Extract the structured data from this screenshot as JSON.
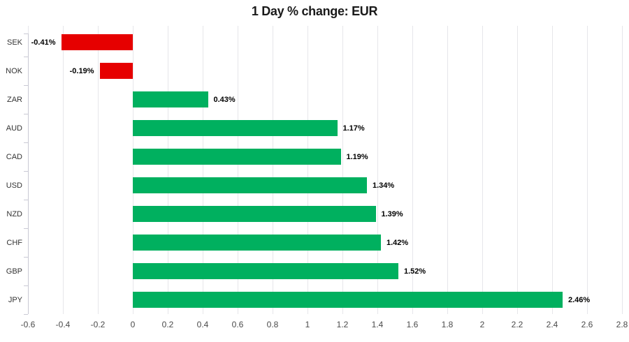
{
  "chart_data": {
    "type": "bar",
    "orientation": "horizontal",
    "title": "1 Day % change: EUR",
    "categories": [
      "SEK",
      "NOK",
      "ZAR",
      "AUD",
      "CAD",
      "USD",
      "NZD",
      "CHF",
      "GBP",
      "JPY"
    ],
    "values": [
      -0.41,
      -0.19,
      0.43,
      1.17,
      1.19,
      1.34,
      1.39,
      1.42,
      1.52,
      2.46
    ],
    "value_labels": [
      "-0.41%",
      "-0.19%",
      "0.43%",
      "1.17%",
      "1.19%",
      "1.34%",
      "1.39%",
      "1.42%",
      "1.52%",
      "2.46%"
    ],
    "xlabel": "",
    "ylabel": "",
    "xlim": [
      -0.6,
      2.8
    ],
    "xticks": [
      -0.6,
      -0.4,
      -0.2,
      0,
      0.2,
      0.4,
      0.6,
      0.8,
      1,
      1.2,
      1.4,
      1.6,
      1.8,
      2,
      2.2,
      2.4,
      2.6,
      2.8
    ],
    "xtick_labels": [
      "-0.6",
      "-0.4",
      "-0.2",
      "0",
      "0.2",
      "0.4",
      "0.6",
      "0.8",
      "1",
      "1.2",
      "1.4",
      "1.6",
      "1.8",
      "2",
      "2.2",
      "2.4",
      "2.6",
      "2.8"
    ],
    "grid": "vertical",
    "legend_position": "none",
    "colors": {
      "positive": "#00b05f",
      "negative": "#e60000"
    }
  }
}
